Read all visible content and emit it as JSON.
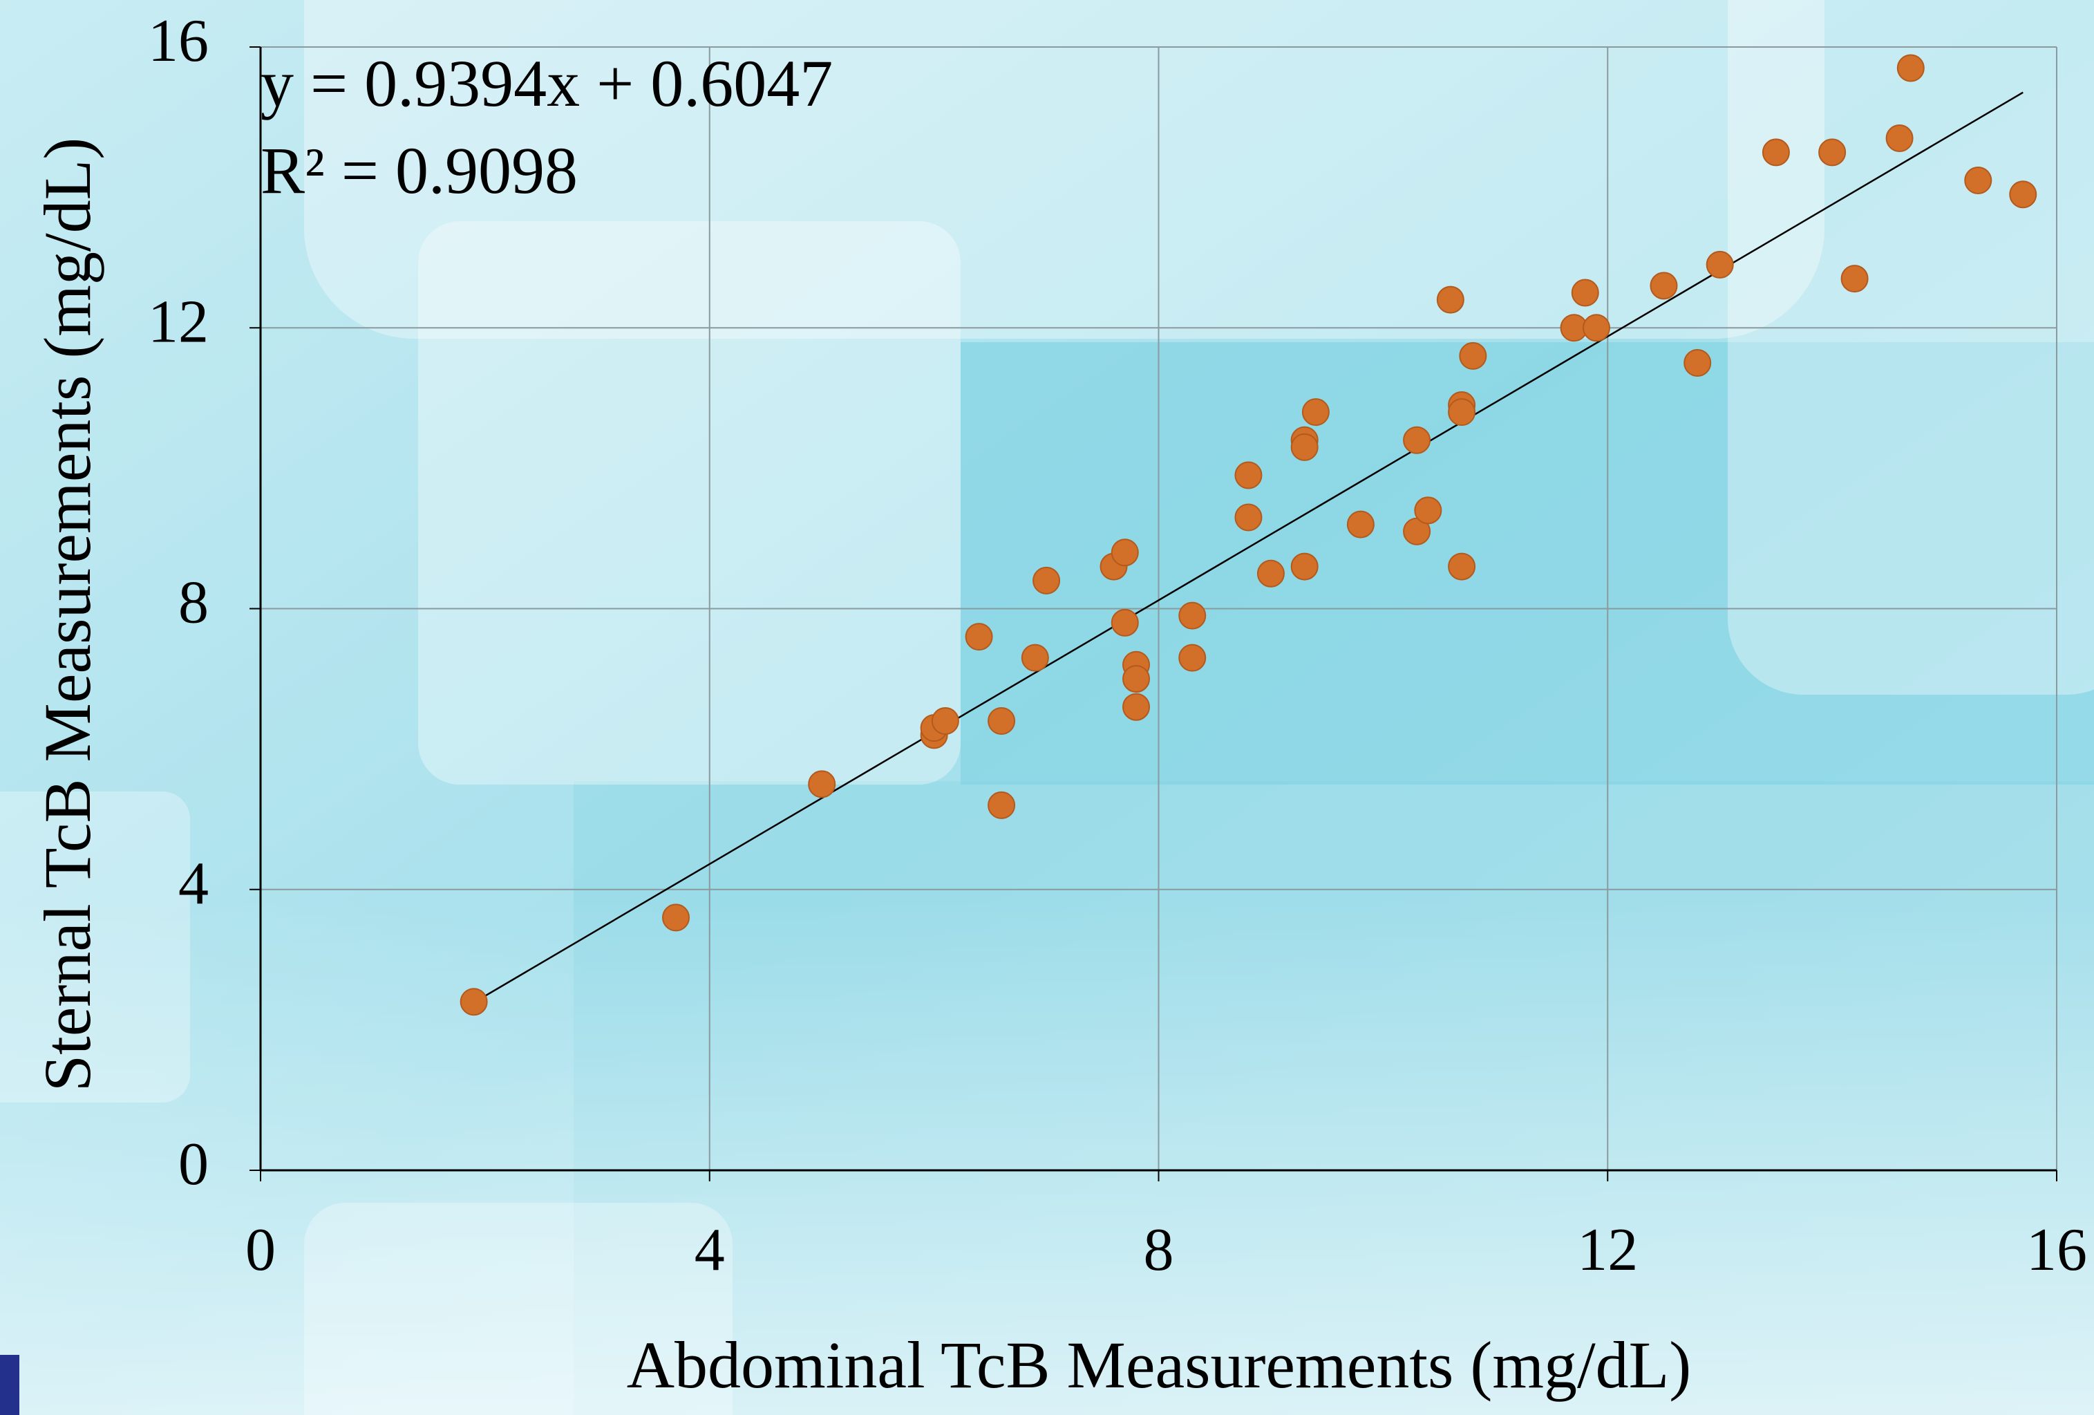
{
  "chart_data": {
    "type": "scatter",
    "xlabel": "Abdominal TcB Measurements (mg/dL)",
    "ylabel": "Sternal TcB Measurements (mg/dL)",
    "annotations": [
      "y = 0.9394x + 0.6047",
      "R² = 0.9098"
    ],
    "trendline": {
      "slope": 0.9394,
      "intercept": 0.6047
    },
    "color": "#d2702a",
    "grid": true,
    "xlim": [
      0,
      16
    ],
    "ylim": [
      0,
      16
    ],
    "xticks": [
      0,
      4,
      8,
      12,
      16
    ],
    "yticks": [
      0,
      4,
      8,
      12,
      16
    ],
    "x": [
      1.9,
      3.7,
      5.0,
      6.0,
      6.0,
      6.1,
      6.4,
      6.6,
      6.6,
      6.9,
      7.0,
      7.6,
      7.7,
      7.7,
      7.8,
      7.8,
      7.8,
      8.3,
      8.3,
      8.8,
      8.8,
      9.0,
      9.3,
      9.3,
      9.3,
      9.4,
      9.8,
      10.3,
      10.3,
      10.4,
      10.6,
      10.7,
      10.7,
      10.7,
      10.8,
      11.7,
      11.8,
      11.9,
      12.5,
      12.8,
      13.0,
      13.5,
      14.0,
      14.2,
      14.6,
      14.7,
      15.3,
      15.7
    ],
    "y": [
      2.4,
      3.6,
      5.5,
      6.2,
      6.3,
      6.4,
      7.6,
      6.4,
      5.2,
      7.3,
      8.4,
      8.6,
      8.8,
      7.8,
      7.2,
      7.0,
      6.6,
      7.9,
      7.3,
      9.9,
      9.3,
      8.5,
      10.4,
      10.3,
      8.6,
      10.8,
      9.2,
      10.4,
      9.1,
      9.4,
      12.4,
      10.9,
      10.8,
      8.6,
      11.6,
      12.0,
      12.5,
      12.0,
      12.6,
      11.5,
      12.9,
      14.5,
      14.5,
      12.7,
      14.7,
      15.7,
      14.1,
      13.9
    ]
  }
}
